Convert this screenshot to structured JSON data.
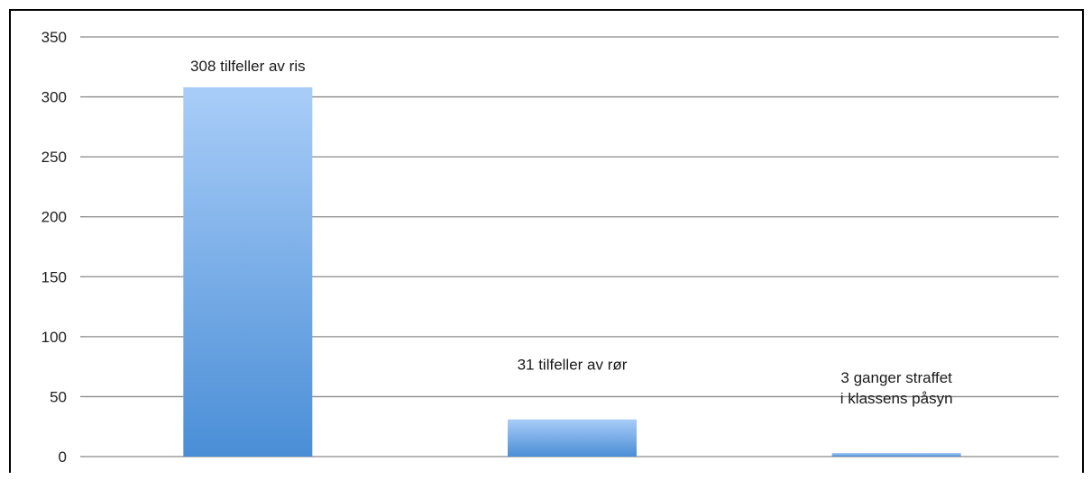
{
  "chart_data": {
    "type": "bar",
    "categories": [
      "308 tilfeller av ris",
      "31 tilfeller av rør",
      "3 ganger straffet i klassens påsyn"
    ],
    "values": [
      308,
      31,
      3
    ],
    "data_labels": [
      [
        "308 tilfeller av ris"
      ],
      [
        "31 tilfeller av rør"
      ],
      [
        "3 ganger straffet",
        "i klassens påsyn"
      ]
    ],
    "title": "",
    "xlabel": "",
    "ylabel": "",
    "ylim": [
      0,
      350
    ],
    "yticks": [
      0,
      50,
      100,
      150,
      200,
      250,
      300,
      350
    ],
    "ytick_labels": [
      "0",
      "50",
      "100",
      "150",
      "200",
      "250",
      "300",
      "350"
    ],
    "grid": true,
    "legend": "none",
    "colors": {
      "bar_top": "#a9cdf8",
      "bar_bottom": "#4a8ed6",
      "grid": "#8a8a8a"
    }
  }
}
